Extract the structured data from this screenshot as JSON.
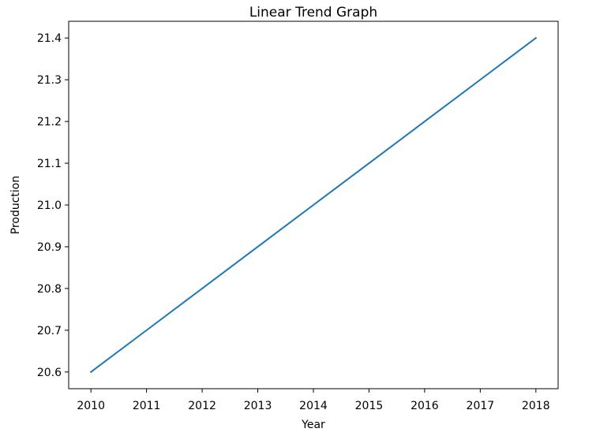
{
  "chart_data": {
    "type": "line",
    "title": "Linear Trend Graph",
    "xlabel": "Year",
    "ylabel": "Production",
    "x": [
      2010,
      2011,
      2012,
      2013,
      2014,
      2015,
      2016,
      2017,
      2018
    ],
    "series": [
      {
        "values": [
          20.6,
          20.7,
          20.8,
          20.9,
          21.0,
          21.1,
          21.2,
          21.3,
          21.4
        ],
        "color": "#1f77b4"
      }
    ],
    "xlim": [
      2009.6,
      2018.4
    ],
    "ylim": [
      20.56,
      21.44
    ],
    "xticks": [
      "2010",
      "2011",
      "2012",
      "2013",
      "2014",
      "2015",
      "2016",
      "2017",
      "2018"
    ],
    "yticks": [
      "20.6",
      "20.7",
      "20.8",
      "20.9",
      "21.0",
      "21.1",
      "21.2",
      "21.3",
      "21.4"
    ],
    "grid": false
  }
}
